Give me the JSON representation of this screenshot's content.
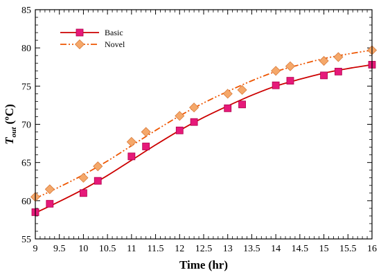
{
  "chart_data": {
    "type": "line",
    "title": "",
    "xlabel": "Time (hr)",
    "ylabel_main": "T",
    "ylabel_sub": "out",
    "ylabel_unit": " (ºC)",
    "xlim": [
      9,
      16
    ],
    "ylim": [
      55,
      85
    ],
    "xticks": [
      9,
      9.5,
      10,
      10.5,
      11,
      11.5,
      12,
      12.5,
      13,
      13.5,
      14,
      14.5,
      15,
      15.5,
      16
    ],
    "yticks": [
      55,
      60,
      65,
      70,
      75,
      80,
      85
    ],
    "grid": false,
    "legend_position": "top-left",
    "series": [
      {
        "name": "Basic",
        "color": "#cc0000",
        "marker_color": "#e6197a",
        "marker": "square",
        "line_style": "solid",
        "points": [
          [
            9.0,
            58.5
          ],
          [
            9.3,
            59.6
          ],
          [
            10.0,
            61.0
          ],
          [
            10.3,
            62.6
          ],
          [
            11.0,
            65.8
          ],
          [
            11.3,
            67.1
          ],
          [
            12.0,
            69.2
          ],
          [
            12.3,
            70.3
          ],
          [
            13.0,
            72.1
          ],
          [
            13.3,
            72.6
          ],
          [
            14.0,
            75.1
          ],
          [
            14.3,
            75.7
          ],
          [
            15.0,
            76.4
          ],
          [
            15.3,
            76.9
          ],
          [
            16.0,
            77.8
          ]
        ],
        "curve": [
          [
            9.0,
            58.4
          ],
          [
            9.5,
            59.9
          ],
          [
            10.0,
            61.5
          ],
          [
            10.5,
            63.3
          ],
          [
            11.0,
            65.3
          ],
          [
            11.5,
            67.3
          ],
          [
            12.0,
            69.2
          ],
          [
            12.5,
            70.9
          ],
          [
            13.0,
            72.4
          ],
          [
            13.5,
            73.8
          ],
          [
            14.0,
            75.0
          ],
          [
            14.5,
            75.9
          ],
          [
            15.0,
            76.7
          ],
          [
            15.5,
            77.3
          ],
          [
            16.0,
            77.8
          ]
        ]
      },
      {
        "name": "Novel",
        "color": "#ee5500",
        "marker_color": "#f5a86a",
        "marker": "diamond",
        "line_style": "dashdotdot",
        "points": [
          [
            9.0,
            60.5
          ],
          [
            9.3,
            61.5
          ],
          [
            10.0,
            63.0
          ],
          [
            10.3,
            64.5
          ],
          [
            11.0,
            67.7
          ],
          [
            11.3,
            69.0
          ],
          [
            12.0,
            71.1
          ],
          [
            12.3,
            72.2
          ],
          [
            13.0,
            74.0
          ],
          [
            13.3,
            74.5
          ],
          [
            14.0,
            77.0
          ],
          [
            14.3,
            77.6
          ],
          [
            15.0,
            78.3
          ],
          [
            15.3,
            78.8
          ],
          [
            16.0,
            79.7
          ]
        ],
        "curve": [
          [
            9.0,
            60.3
          ],
          [
            9.5,
            61.8
          ],
          [
            10.0,
            63.4
          ],
          [
            10.5,
            65.2
          ],
          [
            11.0,
            67.2
          ],
          [
            11.5,
            69.2
          ],
          [
            12.0,
            71.1
          ],
          [
            12.5,
            72.8
          ],
          [
            13.0,
            74.3
          ],
          [
            13.5,
            75.7
          ],
          [
            14.0,
            76.9
          ],
          [
            14.5,
            77.8
          ],
          [
            15.0,
            78.6
          ],
          [
            15.5,
            79.2
          ],
          [
            16.0,
            79.7
          ]
        ]
      }
    ]
  }
}
